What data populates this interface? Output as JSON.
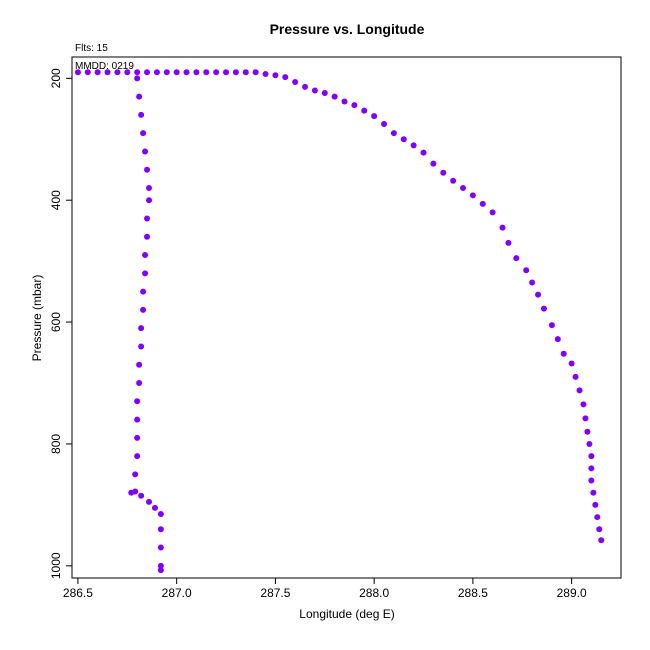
{
  "chart_data": {
    "type": "scatter",
    "title": "Pressure vs. Longitude",
    "xlabel": "Longitude (deg E)",
    "ylabel": "Pressure (mbar)",
    "annotations": [
      "Flts: 15",
      "MMDD: 0219"
    ],
    "xlim": [
      286.47,
      289.25
    ],
    "ylim": [
      1020,
      165
    ],
    "y_reversed": true,
    "x_ticks": [
      "286.5",
      "287.0",
      "287.5",
      "288.0",
      "288.5",
      "289.0"
    ],
    "y_ticks": [
      "200",
      "400",
      "600",
      "800",
      "1000"
    ],
    "grid": false,
    "legend": "none",
    "marker_color": "#7f00ff",
    "series": [
      {
        "values": [
          [
            286.5,
            190
          ],
          [
            286.55,
            190
          ],
          [
            286.6,
            190
          ],
          [
            286.65,
            190
          ],
          [
            286.7,
            190
          ],
          [
            286.75,
            190
          ],
          [
            286.8,
            190
          ],
          [
            286.85,
            190
          ],
          [
            286.9,
            190
          ],
          [
            286.95,
            190
          ],
          [
            287.0,
            190
          ],
          [
            287.05,
            190
          ],
          [
            287.1,
            190
          ],
          [
            287.15,
            190
          ],
          [
            287.2,
            190
          ],
          [
            287.25,
            190
          ],
          [
            287.3,
            190
          ],
          [
            287.35,
            190
          ],
          [
            287.4,
            190
          ],
          [
            287.45,
            193
          ],
          [
            287.5,
            195
          ],
          [
            287.55,
            198
          ],
          [
            287.6,
            206
          ],
          [
            287.65,
            214
          ],
          [
            287.7,
            220
          ],
          [
            287.75,
            224
          ],
          [
            287.8,
            230
          ],
          [
            287.85,
            238
          ],
          [
            287.9,
            244
          ],
          [
            287.95,
            253
          ],
          [
            288.0,
            262
          ],
          [
            288.05,
            275
          ],
          [
            288.1,
            290
          ],
          [
            288.15,
            300
          ],
          [
            288.2,
            310
          ],
          [
            288.25,
            322
          ],
          [
            288.3,
            340
          ],
          [
            288.35,
            355
          ],
          [
            288.4,
            368
          ],
          [
            288.45,
            380
          ],
          [
            288.5,
            392
          ],
          [
            288.55,
            406
          ],
          [
            288.6,
            420
          ],
          [
            288.65,
            445
          ],
          [
            288.68,
            470
          ],
          [
            288.72,
            495
          ],
          [
            288.77,
            515
          ],
          [
            288.8,
            535
          ],
          [
            288.83,
            555
          ],
          [
            288.86,
            578
          ],
          [
            288.9,
            605
          ],
          [
            288.93,
            628
          ],
          [
            288.96,
            652
          ],
          [
            289.0,
            668
          ],
          [
            289.02,
            690
          ],
          [
            289.04,
            712
          ],
          [
            289.06,
            735
          ],
          [
            289.07,
            758
          ],
          [
            289.08,
            780
          ],
          [
            289.09,
            800
          ],
          [
            289.1,
            820
          ],
          [
            289.1,
            840
          ],
          [
            289.1,
            860
          ],
          [
            289.11,
            880
          ],
          [
            289.12,
            900
          ],
          [
            289.13,
            920
          ],
          [
            289.14,
            940
          ],
          [
            289.15,
            958
          ],
          [
            286.8,
            200
          ],
          [
            286.81,
            230
          ],
          [
            286.82,
            260
          ],
          [
            286.83,
            290
          ],
          [
            286.84,
            320
          ],
          [
            286.85,
            350
          ],
          [
            286.86,
            380
          ],
          [
            286.86,
            400
          ],
          [
            286.85,
            430
          ],
          [
            286.85,
            460
          ],
          [
            286.84,
            490
          ],
          [
            286.84,
            520
          ],
          [
            286.83,
            550
          ],
          [
            286.83,
            580
          ],
          [
            286.82,
            610
          ],
          [
            286.82,
            640
          ],
          [
            286.81,
            670
          ],
          [
            286.81,
            700
          ],
          [
            286.8,
            730
          ],
          [
            286.8,
            760
          ],
          [
            286.8,
            790
          ],
          [
            286.8,
            820
          ],
          [
            286.79,
            850
          ],
          [
            286.79,
            878
          ],
          [
            286.77,
            880
          ],
          [
            286.82,
            885
          ],
          [
            286.86,
            895
          ],
          [
            286.89,
            905
          ],
          [
            286.92,
            915
          ],
          [
            286.92,
            940
          ],
          [
            286.92,
            970
          ],
          [
            286.92,
            1000
          ],
          [
            286.92,
            1007
          ]
        ]
      }
    ]
  }
}
